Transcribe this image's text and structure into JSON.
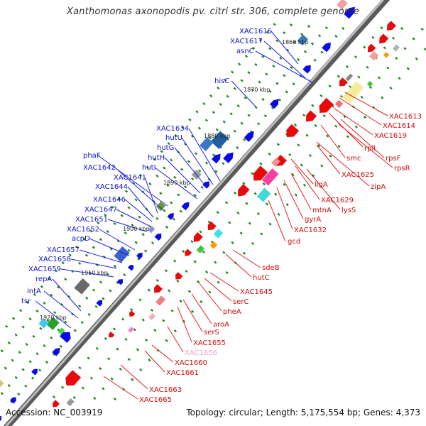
{
  "title": "Xanthomonas axonopodis pv. citri str. 306, complete genome",
  "footer": {
    "accession": "Accession: NC_003919",
    "summary": "Topology: circular; Length: 5,175,554 bp; Genes: 4,373"
  },
  "scale_labels": [
    "1860 kbp",
    "1870 kbp",
    "1880 kbp",
    "1890 kbp",
    "1900 kbp",
    "1910 kbp",
    "1920 kbp"
  ],
  "left_labels": [
    "XAC1616",
    "XAC1617",
    "asnC",
    "hisC",
    "XAC1634",
    "hutU",
    "hutG",
    "hutH",
    "hutI",
    "phaF",
    "XAC1642",
    "XAC1641",
    "XAC1644",
    "XAC1646",
    "XAC1647",
    "XAC1651",
    "XAC1652",
    "acpD",
    "XAC1657",
    "XAC1658",
    "XAC1659",
    "repA",
    "intA",
    "tsr"
  ],
  "right_labels": [
    "XAC1613",
    "XAC1614",
    "XAC1619",
    "rpll",
    "smc",
    "rpsF",
    "rpsR",
    "XAC1625",
    "zipA",
    "ligA",
    "XAC1629",
    "mtnA",
    "lysS",
    "gyrA",
    "XAC1632",
    "gcd",
    "sdeB",
    "hutC",
    "XAC1645",
    "serC",
    "pheA",
    "aroA",
    "serS",
    "XAC1655",
    "XAC1656",
    "XAC1660",
    "XAC1661",
    "XAC1663",
    "XAC1665"
  ],
  "colors": {
    "forward_gene": "#0a0ae6",
    "reverse_gene": "#e60a0a",
    "forward_line": "#1e1ef0",
    "reverse_line": "#e61e1e",
    "highlight_label": "#f0a0d8",
    "backbone": "#8a8a8a",
    "tick": "#1f8a1f"
  }
}
